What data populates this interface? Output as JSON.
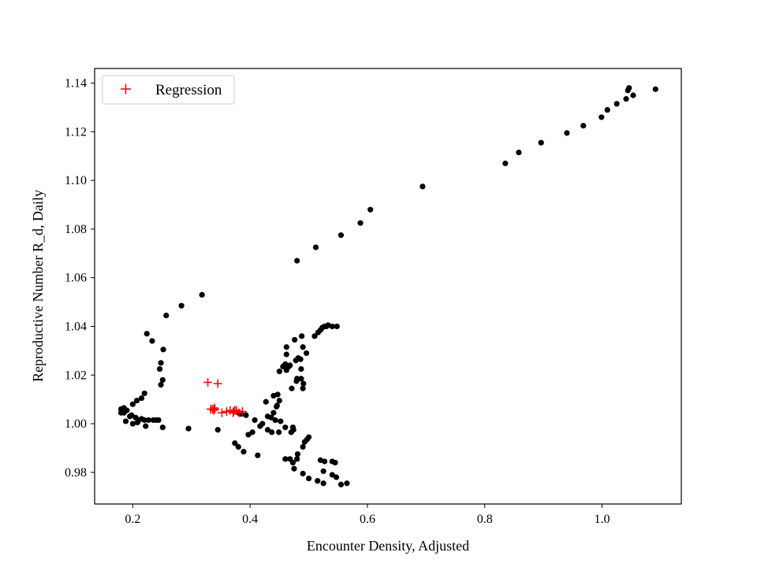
{
  "chart_data": {
    "type": "scatter",
    "title": "",
    "xlabel": "Encounter Density, Adjusted",
    "ylabel": "Reproductive Number R_d, Daily",
    "xlim": [
      0.135,
      1.135
    ],
    "ylim": [
      0.967,
      1.146
    ],
    "xticks": [
      0.2,
      0.4,
      0.6,
      0.8,
      1.0
    ],
    "xtick_labels": [
      "0.2",
      "0.4",
      "0.6",
      "0.8",
      "1.0"
    ],
    "yticks": [
      0.98,
      1.0,
      1.02,
      1.04,
      1.06,
      1.08,
      1.1,
      1.12,
      1.14
    ],
    "ytick_labels": [
      "0.98",
      "1.00",
      "1.02",
      "1.04",
      "1.06",
      "1.08",
      "1.10",
      "1.12",
      "1.14"
    ],
    "grid": false,
    "legend_position": "top-left",
    "series": [
      {
        "marker": "dot",
        "color": "#000000",
        "points": [
          [
            1.091,
            1.1375
          ],
          [
            1.053,
            1.135
          ],
          [
            1.046,
            1.138
          ],
          [
            1.044,
            1.137
          ],
          [
            1.041,
            1.1335
          ],
          [
            1.025,
            1.1315
          ],
          [
            1.009,
            1.129
          ],
          [
            0.999,
            1.126
          ],
          [
            0.968,
            1.1225
          ],
          [
            0.94,
            1.1195
          ],
          [
            0.896,
            1.1155
          ],
          [
            0.858,
            1.1115
          ],
          [
            0.835,
            1.107
          ],
          [
            0.694,
            1.0975
          ],
          [
            0.605,
            1.088
          ],
          [
            0.588,
            1.0825
          ],
          [
            0.555,
            1.0775
          ],
          [
            0.512,
            1.0725
          ],
          [
            0.48,
            1.067
          ],
          [
            0.318,
            1.053
          ],
          [
            0.283,
            1.0485
          ],
          [
            0.257,
            1.0445
          ],
          [
            0.224,
            1.037
          ],
          [
            0.233,
            1.034
          ],
          [
            0.252,
            1.0305
          ],
          [
            0.248,
            1.025
          ],
          [
            0.246,
            1.0225
          ],
          [
            0.251,
            1.018
          ],
          [
            0.248,
            1.016
          ],
          [
            0.22,
            1.0125
          ],
          [
            0.215,
            1.0105
          ],
          [
            0.2,
            1.008
          ],
          [
            0.207,
            1.0095
          ],
          [
            0.185,
            1.0065
          ],
          [
            0.19,
            1.0055
          ],
          [
            0.18,
            1.0045
          ],
          [
            0.18,
            1.006
          ],
          [
            0.185,
            1.0045
          ],
          [
            0.195,
            1.003
          ],
          [
            0.198,
            1.0035
          ],
          [
            0.205,
            1.0025
          ],
          [
            0.21,
            1.0015
          ],
          [
            0.215,
            1.002
          ],
          [
            0.22,
            1.0015
          ],
          [
            0.227,
            1.0015
          ],
          [
            0.235,
            1.0015
          ],
          [
            0.24,
            1.0015
          ],
          [
            0.244,
            1.0015
          ],
          [
            0.2,
            1.0
          ],
          [
            0.188,
            1.001
          ],
          [
            0.208,
            1.0005
          ],
          [
            0.222,
            0.999
          ],
          [
            0.251,
            0.9985
          ],
          [
            0.295,
            0.998
          ],
          [
            0.345,
            0.9975
          ],
          [
            0.38,
            1.0045
          ],
          [
            0.385,
            1.004
          ],
          [
            0.393,
            1.0035
          ],
          [
            0.408,
            1.0015
          ],
          [
            0.417,
            0.999
          ],
          [
            0.421,
            1.0
          ],
          [
            0.43,
            0.9975
          ],
          [
            0.437,
            0.9965
          ],
          [
            0.449,
            0.9965
          ],
          [
            0.397,
            0.9955
          ],
          [
            0.404,
            0.9965
          ],
          [
            0.374,
            0.992
          ],
          [
            0.38,
            0.9905
          ],
          [
            0.389,
            0.9885
          ],
          [
            0.413,
            0.987
          ],
          [
            0.43,
            1.003
          ],
          [
            0.436,
            1.0025
          ],
          [
            0.443,
            1.0015
          ],
          [
            0.452,
            1.001
          ],
          [
            0.44,
            1.0045
          ],
          [
            0.445,
            1.007
          ],
          [
            0.446,
            1.0075
          ],
          [
            0.44,
            1.0115
          ],
          [
            0.447,
            1.012
          ],
          [
            0.427,
            1.009
          ],
          [
            0.45,
            1.0095
          ],
          [
            0.46,
            0.9985
          ],
          [
            0.47,
            0.9965
          ],
          [
            0.474,
            0.9975
          ],
          [
            0.473,
            0.9985
          ],
          [
            0.49,
            0.9905
          ],
          [
            0.497,
            0.9935
          ],
          [
            0.5,
            0.9945
          ],
          [
            0.493,
            0.9925
          ],
          [
            0.46,
            0.9855
          ],
          [
            0.468,
            0.9855
          ],
          [
            0.473,
            0.984
          ],
          [
            0.475,
            0.9815
          ],
          [
            0.48,
            0.9855
          ],
          [
            0.481,
            0.9875
          ],
          [
            0.49,
            0.9795
          ],
          [
            0.5,
            0.9775
          ],
          [
            0.515,
            0.9765
          ],
          [
            0.525,
            0.9755
          ],
          [
            0.525,
            0.9805
          ],
          [
            0.52,
            0.985
          ],
          [
            0.527,
            0.9845
          ],
          [
            0.54,
            0.9845
          ],
          [
            0.545,
            0.984
          ],
          [
            0.54,
            0.979
          ],
          [
            0.547,
            0.978
          ],
          [
            0.555,
            0.975
          ],
          [
            0.565,
            0.9755
          ],
          [
            0.45,
            1.0215
          ],
          [
            0.456,
            1.0235
          ],
          [
            0.46,
            1.0245
          ],
          [
            0.462,
            1.022
          ],
          [
            0.466,
            1.0235
          ],
          [
            0.468,
            1.024
          ],
          [
            0.458,
            1.0235
          ],
          [
            0.462,
            1.0285
          ],
          [
            0.462,
            1.0315
          ],
          [
            0.478,
            1.026
          ],
          [
            0.482,
            1.027
          ],
          [
            0.486,
            1.0265
          ],
          [
            0.49,
            1.0315
          ],
          [
            0.496,
            1.029
          ],
          [
            0.488,
            1.036
          ],
          [
            0.476,
            1.0345
          ],
          [
            0.487,
            1.0225
          ],
          [
            0.471,
            1.0145
          ],
          [
            0.479,
            1.0175
          ],
          [
            0.48,
            1.0185
          ],
          [
            0.487,
            1.0185
          ],
          [
            0.491,
            1.0165
          ],
          [
            0.49,
            1.0145
          ],
          [
            0.51,
            1.036
          ],
          [
            0.516,
            1.0375
          ],
          [
            0.52,
            1.0385
          ],
          [
            0.523,
            1.0395
          ],
          [
            0.527,
            1.04
          ],
          [
            0.53,
            1.04
          ],
          [
            0.533,
            1.0405
          ],
          [
            0.54,
            1.04
          ],
          [
            0.548,
            1.04
          ]
        ]
      },
      {
        "name": "Regression",
        "marker": "plus",
        "color": "#ff0000",
        "points": [
          [
            0.328,
            1.017
          ],
          [
            0.345,
            1.0165
          ],
          [
            0.333,
            1.006
          ],
          [
            0.338,
            1.0055
          ],
          [
            0.34,
            1.006
          ],
          [
            0.352,
            1.0045
          ],
          [
            0.36,
            1.005
          ],
          [
            0.366,
            1.0055
          ],
          [
            0.372,
            1.005
          ],
          [
            0.377,
            1.0055
          ],
          [
            0.381,
            1.0045
          ],
          [
            0.387,
            1.005
          ],
          [
            0.336,
            1.006
          ],
          [
            0.339,
            1.0065
          ],
          [
            0.371,
            1.0045
          ],
          [
            0.374,
            1.0055
          ]
        ]
      }
    ],
    "legend": [
      "Regression"
    ]
  }
}
